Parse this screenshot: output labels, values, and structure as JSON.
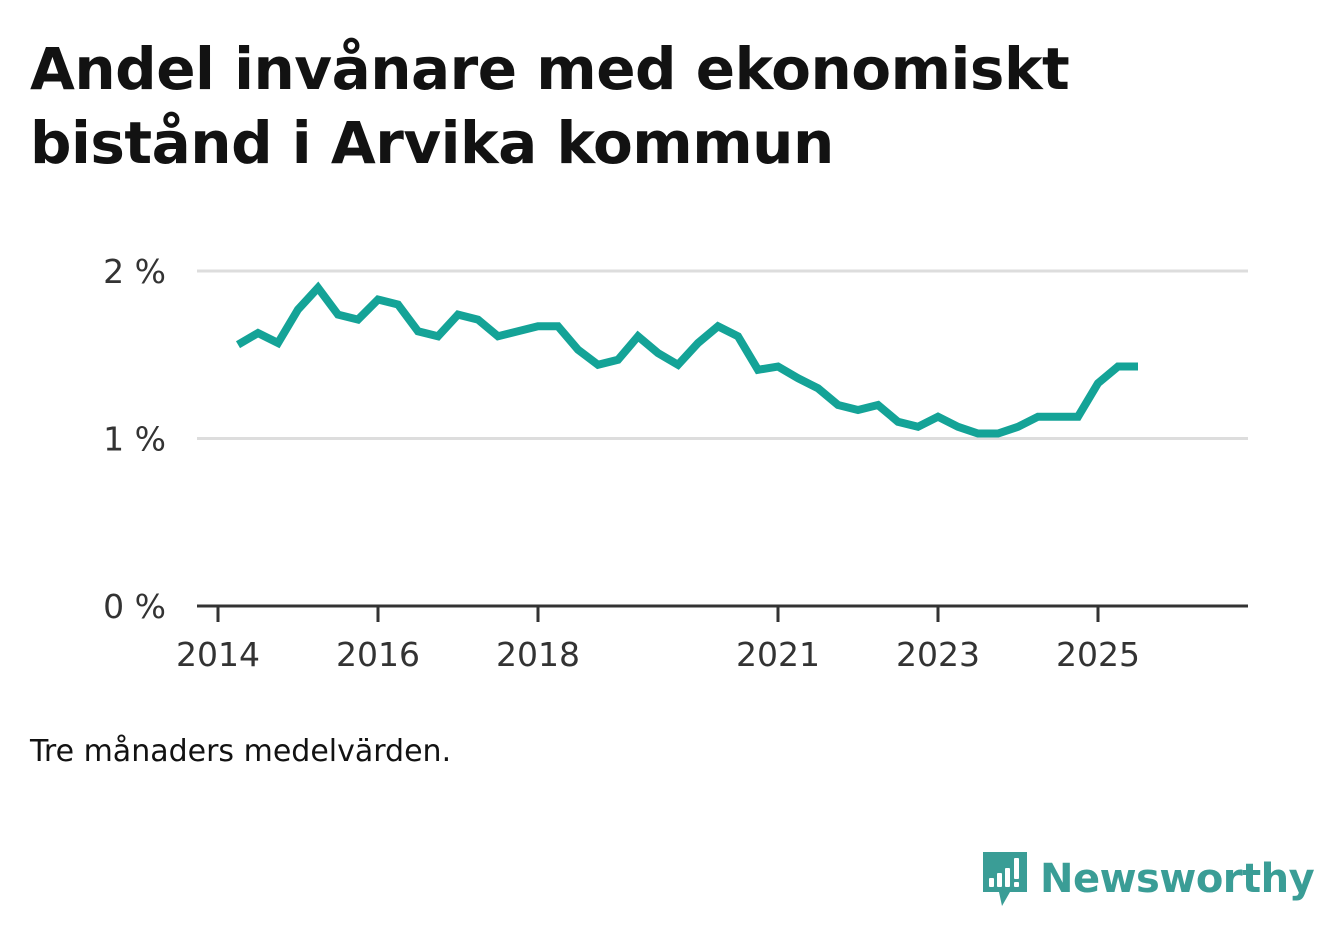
{
  "title_lines": [
    "Andel invånare med ekonomiskt",
    "bistånd i Arvika kommun"
  ],
  "footnote": "Tre månaders medelvärden.",
  "brand": {
    "name": "Newsworthy",
    "color": "#3a9d96",
    "icon": "bar-chart-speech-bubble-icon"
  },
  "colors": {
    "line": "#14a397",
    "grid": "#dddddd",
    "axis": "#333333"
  },
  "chart_data": {
    "type": "line",
    "title": "Andel invånare med ekonomiskt bistånd i Arvika kommun",
    "xlabel": "",
    "ylabel": "",
    "ylim": [
      0,
      2
    ],
    "xlim": [
      2014.0,
      2026.3
    ],
    "grid": true,
    "y_ticks": [
      {
        "value": 0,
        "label": "0 %"
      },
      {
        "value": 1,
        "label": "1 %"
      },
      {
        "value": 2,
        "label": "2 %"
      }
    ],
    "x_ticks": [
      {
        "value": 2014.0,
        "label": "2014"
      },
      {
        "value": 2016.0,
        "label": "2016"
      },
      {
        "value": 2018.0,
        "label": "2018"
      },
      {
        "value": 2021.0,
        "label": "2021"
      },
      {
        "value": 2023.0,
        "label": "2023"
      },
      {
        "value": 2025.0,
        "label": "2025"
      }
    ],
    "series": [
      {
        "name": "Andel invånare med ekonomiskt bistånd",
        "x": [
          2014.25,
          2014.5,
          2014.75,
          2015.0,
          2015.25,
          2015.5,
          2015.75,
          2016.0,
          2016.25,
          2016.5,
          2016.75,
          2017.0,
          2017.25,
          2017.5,
          2017.75,
          2018.0,
          2018.25,
          2018.5,
          2018.75,
          2019.0,
          2019.25,
          2019.5,
          2019.75,
          2020.0,
          2020.25,
          2020.5,
          2020.75,
          2021.0,
          2021.25,
          2021.5,
          2021.75,
          2022.0,
          2022.25,
          2022.5,
          2022.75,
          2023.0,
          2023.25,
          2023.5,
          2023.75,
          2024.0,
          2024.25,
          2024.5,
          2024.75,
          2025.0,
          2025.25,
          2025.5
        ],
        "values": [
          1.56,
          1.63,
          1.57,
          1.77,
          1.9,
          1.74,
          1.71,
          1.83,
          1.8,
          1.64,
          1.61,
          1.74,
          1.71,
          1.61,
          1.64,
          1.67,
          1.67,
          1.53,
          1.44,
          1.47,
          1.61,
          1.51,
          1.44,
          1.57,
          1.67,
          1.61,
          1.41,
          1.43,
          1.36,
          1.3,
          1.2,
          1.17,
          1.2,
          1.1,
          1.07,
          1.13,
          1.07,
          1.03,
          1.03,
          1.07,
          1.13,
          1.13,
          1.13,
          1.33,
          1.43,
          1.43
        ]
      }
    ]
  }
}
